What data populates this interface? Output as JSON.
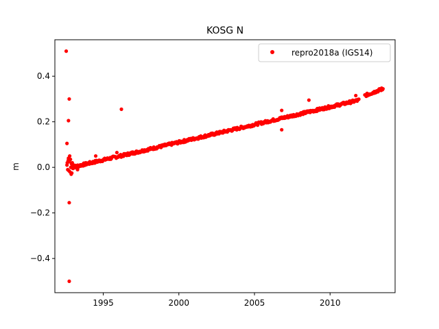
{
  "chart_data": {
    "type": "scatter",
    "title": "KOSG N",
    "xlabel": "",
    "ylabel": "m",
    "xlim": [
      1991.8,
      2014.3
    ],
    "ylim": [
      -0.55,
      0.56
    ],
    "x_ticks": [
      1995,
      2000,
      2005,
      2010
    ],
    "y_ticks": [
      -0.4,
      -0.2,
      0.0,
      0.2,
      0.4
    ],
    "x_tick_labels": [
      "1995",
      "2000",
      "2005",
      "2010"
    ],
    "y_tick_labels": [
      "−0.4",
      "−0.2",
      "0.0",
      "0.2",
      "0.4"
    ],
    "legend_position": "top-right",
    "grid": false,
    "series": [
      {
        "name": "repro2018a (IGS14)",
        "color": "#ff0000",
        "marker": "circle",
        "trend": {
          "x_start": 1992.9,
          "y_start": 0.0,
          "x_end": 2011.9,
          "y_end": 0.295
        },
        "segment2": {
          "x_start": 2012.3,
          "y_start": 0.315,
          "x_end": 2013.5,
          "y_end": 0.345
        },
        "early_cluster": [
          [
            1992.6,
            0.01
          ],
          [
            1992.62,
            0.02
          ],
          [
            1992.65,
            -0.01
          ],
          [
            1992.68,
            0.03
          ],
          [
            1992.7,
            0.04
          ],
          [
            1992.73,
            -0.015
          ],
          [
            1992.75,
            0.025
          ],
          [
            1992.78,
            0.05
          ],
          [
            1992.8,
            -0.02
          ],
          [
            1992.83,
            0.035
          ],
          [
            1992.85,
            0.0
          ],
          [
            1992.88,
            -0.03
          ],
          [
            1992.9,
            0.015
          ],
          [
            1992.92,
            -0.025
          ],
          [
            1992.95,
            0.02
          ],
          [
            1993.0,
            -0.005
          ],
          [
            1993.05,
            0.01
          ],
          [
            1993.1,
            0.0
          ],
          [
            1993.2,
            0.005
          ],
          [
            1993.3,
            -0.01
          ]
        ],
        "outliers": [
          [
            1992.55,
            0.51
          ],
          [
            1992.6,
            0.105
          ],
          [
            1992.7,
            0.205
          ],
          [
            1992.75,
            0.3
          ],
          [
            1992.75,
            -0.155
          ],
          [
            1992.75,
            -0.5
          ],
          [
            1996.2,
            0.255
          ],
          [
            1995.9,
            0.065
          ],
          [
            1994.5,
            0.05
          ],
          [
            2006.8,
            0.165
          ],
          [
            2006.8,
            0.25
          ],
          [
            2008.6,
            0.295
          ],
          [
            2011.7,
            0.315
          ]
        ]
      }
    ]
  }
}
